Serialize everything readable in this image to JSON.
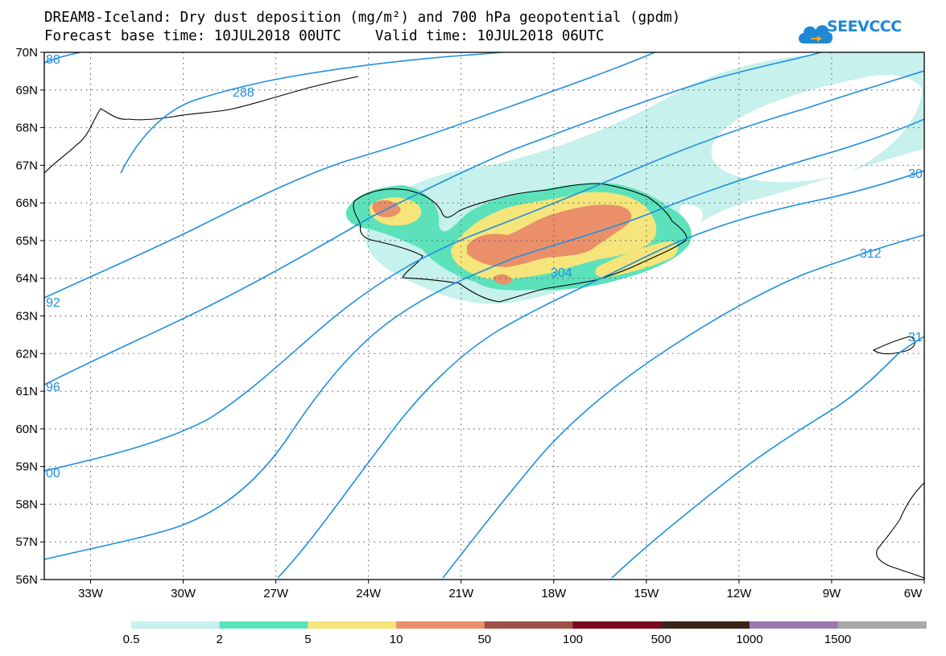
{
  "title_line1": "DREAM8-Iceland: Dry dust deposition (mg/m²) and 700 hPa geopotential (gpdm)",
  "title_line2": "Forecast base time: 10JUL2018 00UTC    Valid time: 10JUL2018 06UTC",
  "logo_text": "SEEVCCC",
  "colors": {
    "contour": "#1f8fe0",
    "levels": [
      "#c6f1ec",
      "#5ce2bb",
      "#f5e57a",
      "#ea8f6a",
      "#9e4f46",
      "#7b0b23",
      "#3b2518",
      "#9a78ac",
      "#a8a8a8"
    ]
  },
  "map": {
    "lon_range": [
      -34.5,
      -6
    ],
    "lat_range": [
      56,
      70
    ],
    "lat_labels": [
      "70N",
      "69N",
      "68N",
      "67N",
      "66N",
      "65N",
      "64N",
      "63N",
      "62N",
      "61N",
      "60N",
      "59N",
      "58N",
      "57N",
      "56N"
    ],
    "lon_labels": [
      "33W",
      "30W",
      "27W",
      "24W",
      "21W",
      "18W",
      "15W",
      "12W",
      "9W",
      "6W"
    ],
    "contour_labels": [
      "88",
      "288",
      "92",
      "96",
      "00",
      "304",
      "312",
      "30",
      "31"
    ]
  },
  "colorbar": {
    "labels": [
      "0.5",
      "2",
      "5",
      "10",
      "50",
      "100",
      "500",
      "1000",
      "1500"
    ]
  }
}
